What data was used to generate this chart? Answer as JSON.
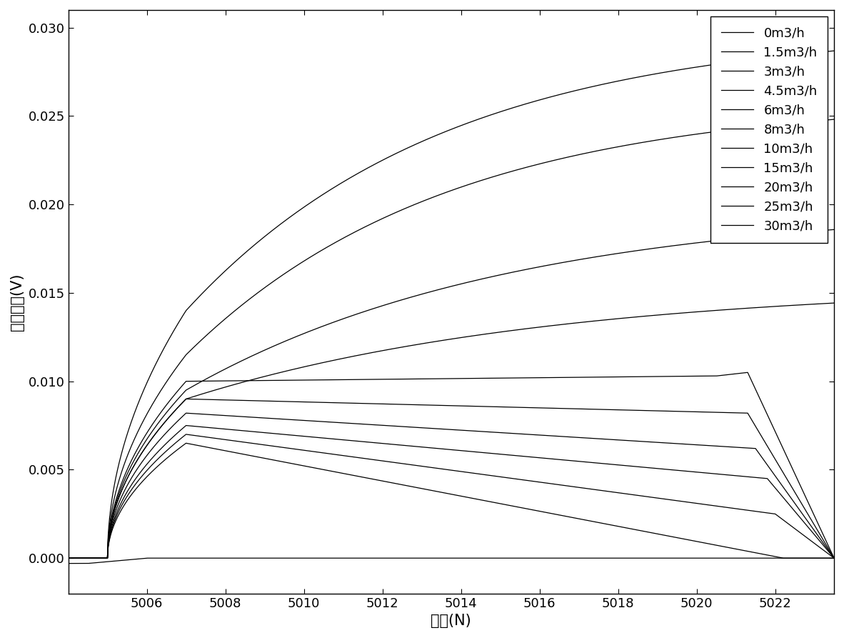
{
  "xlabel": "点数(N)",
  "ylabel": "信号电压(V)",
  "xlim": [
    5004.0,
    5023.5
  ],
  "ylim": [
    -0.002,
    0.031
  ],
  "yticks": [
    0.0,
    0.005,
    0.01,
    0.015,
    0.02,
    0.025,
    0.03
  ],
  "xticks": [
    5006,
    5008,
    5010,
    5012,
    5014,
    5016,
    5018,
    5020,
    5022
  ],
  "legend_labels": [
    "0m3/h",
    "1.5m3/h",
    "3m3/h",
    "4.5m3/h",
    "6m3/h",
    "8m3/h",
    "10m3/h",
    "15m3/h",
    "20m3/h",
    "25m3/h",
    "30m3/h"
  ],
  "line_color": "#000000",
  "background_color": "#ffffff",
  "font_size": 15,
  "legend_font_size": 13,
  "tick_font_size": 13
}
